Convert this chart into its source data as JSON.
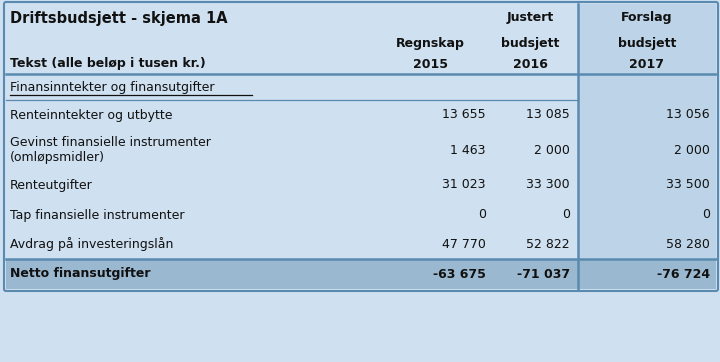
{
  "title": "Driftsbudsjett - skjema 1A",
  "header_row1": [
    "",
    "",
    "Justert",
    "Forslag"
  ],
  "header_row2": [
    "",
    "Regnskap",
    "budsjett",
    "budsjett"
  ],
  "header_row3": [
    "Tekst (alle beløp i tusen kr.)",
    "2015",
    "2016",
    "2017"
  ],
  "section_header": "Finansinntekter og finansutgifter",
  "rows": [
    [
      "Renteinntekter og utbytte",
      "13 655",
      "13 085",
      "13 056"
    ],
    [
      "Gevinst finansielle instrumenter\n(omløpsmidler)",
      "1 463",
      "2 000",
      "2 000"
    ],
    [
      "Renteutgifter",
      "31 023",
      "33 300",
      "33 500"
    ],
    [
      "Tap finansielle instrumenter",
      "0",
      "0",
      "0"
    ],
    [
      "Avdrag på investeringslån",
      "47 770",
      "52 822",
      "58 280"
    ]
  ],
  "total_row": [
    "Netto finansutgifter",
    "-63 675",
    "-71 037",
    "-76 724"
  ],
  "bg_main": "#cfe0f0",
  "bg_last_col": "#bdd4e8",
  "bg_total": "#9ab8d0",
  "line_color": "#5a8ab0",
  "text_color": "#111111",
  "fig_w": 7.2,
  "fig_h": 3.62,
  "dpi": 100
}
